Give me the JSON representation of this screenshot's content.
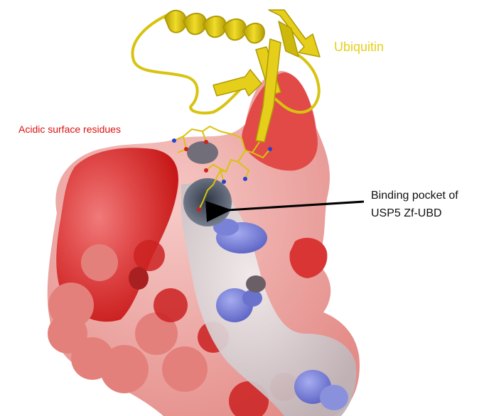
{
  "labels": {
    "ubiquitin": "Ubiquitin",
    "acidic_surface": "Acidic surface residues",
    "binding_pocket_line1": "Binding pocket of",
    "binding_pocket_line2": "USP5 Zf-UBD"
  },
  "colors": {
    "ubiquitin": "#e6cf1a",
    "acidic_label": "#dd1111",
    "acidic_surface": "#d61c1c",
    "basic_surface": "#6a72cc",
    "neutral_surface": "#e8e4e6",
    "pocket": "#4a5262",
    "arrow": "#000000"
  },
  "icons": {
    "ubiquitin_ribbon": "helix-and-strands",
    "protein_surface": "electrostatic-surface",
    "pointer": "arrow-left"
  }
}
